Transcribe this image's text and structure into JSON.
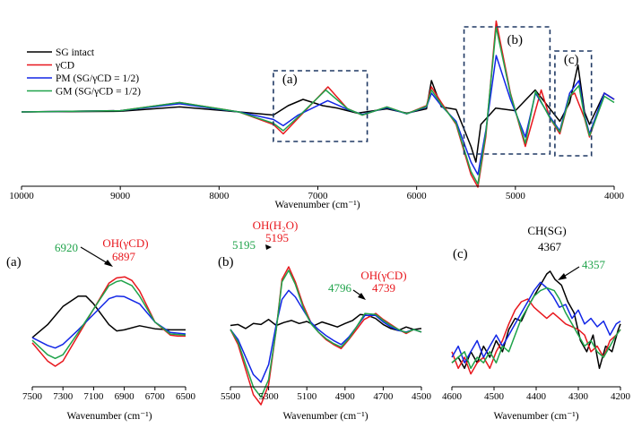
{
  "figure": {
    "colors": {
      "sg_intact": "#000000",
      "gamma_cd": "#e8171d",
      "pm": "#1226e6",
      "gm": "#1fa34a",
      "frame": "#1f3863"
    }
  },
  "chart_data": [
    {
      "id": "main",
      "type": "line",
      "xlabel": "Wavenumber (cm⁻¹)",
      "ylabel": "",
      "xlim": [
        10000,
        4000
      ],
      "x_reversed": true,
      "y_ticks_shown": false,
      "xticks": [
        10000,
        9000,
        8000,
        7000,
        6000,
        5000,
        4000
      ],
      "xtick_labels": [
        "10000",
        "9000",
        "8000",
        "7000",
        "6000",
        "5000",
        "4000"
      ],
      "legend": {
        "placement": "top-left",
        "entries": [
          "SG intact",
          "γCD",
          "PM (SG/γCD = 1/2)",
          "GM (SG/γCD = 1/2)"
        ]
      },
      "region_boxes": [
        {
          "label": "(a)",
          "x_range": [
            7450,
            6500
          ]
        },
        {
          "label": "(b)",
          "x_range": [
            5520,
            4650
          ]
        },
        {
          "label": "(c)",
          "x_range": [
            4600,
            4230
          ]
        }
      ],
      "series": [
        {
          "name": "SG intact",
          "x": [
            10000,
            9000,
            8400,
            7800,
            7450,
            7300,
            7150,
            6950,
            6800,
            6600,
            6300,
            6100,
            5900,
            5850,
            5750,
            5600,
            5450,
            5400,
            5350,
            5200,
            5000,
            4800,
            4700,
            4550,
            4450,
            4367,
            4300,
            4250,
            4100,
            4000
          ],
          "y": [
            0.0,
            0.01,
            0.08,
            0.0,
            -0.05,
            0.1,
            0.2,
            0.1,
            0.06,
            -0.02,
            0.05,
            -0.02,
            0.05,
            0.5,
            0.08,
            0.04,
            -0.55,
            -0.8,
            -0.2,
            0.06,
            0.02,
            0.35,
            0.15,
            -0.15,
            0.15,
            0.75,
            0.0,
            -0.2,
            0.3,
            0.2
          ]
        },
        {
          "name": "γCD",
          "x": [
            10000,
            9000,
            8400,
            7800,
            7450,
            7350,
            7200,
            6897,
            6700,
            6550,
            6300,
            6100,
            5900,
            5850,
            5750,
            5600,
            5450,
            5380,
            5300,
            5195,
            5050,
            4900,
            4739,
            4650,
            4550,
            4450,
            4400,
            4300,
            4250,
            4100,
            4000
          ],
          "y": [
            0.0,
            0.02,
            0.15,
            0.0,
            -0.2,
            -0.35,
            -0.1,
            0.4,
            0.05,
            -0.05,
            0.08,
            -0.03,
            0.1,
            0.4,
            0.15,
            -0.2,
            -1.0,
            -1.2,
            -0.4,
            1.45,
            0.3,
            -0.55,
            0.35,
            -0.1,
            -0.35,
            0.25,
            0.3,
            -0.1,
            -0.4,
            0.3,
            0.2
          ]
        },
        {
          "name": "PM (SG/γCD = 1/2)",
          "x": [
            10000,
            9000,
            8400,
            7800,
            7450,
            7350,
            7200,
            6900,
            6700,
            6550,
            6300,
            6100,
            5900,
            5850,
            5750,
            5600,
            5450,
            5380,
            5300,
            5195,
            5050,
            4900,
            4796,
            4650,
            4550,
            4450,
            4357,
            4300,
            4250,
            4100,
            4000
          ],
          "y": [
            0.0,
            0.02,
            0.13,
            0.0,
            -0.12,
            -0.22,
            -0.05,
            0.18,
            0.04,
            -0.04,
            0.07,
            -0.03,
            0.08,
            0.3,
            0.1,
            -0.15,
            -0.8,
            -1.0,
            -0.3,
            0.9,
            0.2,
            -0.4,
            0.3,
            -0.08,
            -0.3,
            0.3,
            0.5,
            -0.05,
            -0.35,
            0.3,
            0.2
          ]
        },
        {
          "name": "GM (SG/γCD = 1/2)",
          "x": [
            10000,
            9000,
            8400,
            7800,
            7450,
            7350,
            7200,
            6920,
            6700,
            6550,
            6300,
            6100,
            5900,
            5850,
            5750,
            5600,
            5450,
            5380,
            5300,
            5195,
            5050,
            4900,
            4796,
            4650,
            4550,
            4450,
            4357,
            4300,
            4250,
            4100,
            4000
          ],
          "y": [
            0.0,
            0.02,
            0.15,
            0.0,
            -0.18,
            -0.3,
            -0.08,
            0.35,
            0.05,
            -0.05,
            0.08,
            -0.03,
            0.09,
            0.35,
            0.12,
            -0.18,
            -0.95,
            -1.15,
            -0.35,
            1.35,
            0.28,
            -0.5,
            0.33,
            -0.1,
            -0.32,
            0.25,
            0.42,
            -0.08,
            -0.38,
            0.25,
            0.15
          ]
        }
      ]
    },
    {
      "id": "a",
      "type": "line",
      "panel_label": "(a)",
      "xlabel": "Wavenumber (cm⁻¹)",
      "xlim": [
        7500,
        6500
      ],
      "x_reversed": true,
      "xticks": [
        7500,
        7300,
        7100,
        6900,
        6700,
        6500
      ],
      "xtick_labels": [
        "7500",
        "7300",
        "7100",
        "6900",
        "6700",
        "6500"
      ],
      "annotations": [
        {
          "text": "OH(γCD)",
          "series": "γCD"
        },
        {
          "text": "6897",
          "series": "γCD",
          "x": 6897
        },
        {
          "text": "6920",
          "series": "GM (SG/γCD = 1/2)",
          "x": 6920
        }
      ],
      "series": [
        {
          "name": "SG intact",
          "x": [
            7500,
            7400,
            7300,
            7200,
            7150,
            7100,
            7000,
            6950,
            6900,
            6800,
            6700,
            6600,
            6500
          ],
          "y": [
            0.05,
            0.3,
            0.65,
            0.85,
            0.85,
            0.7,
            0.3,
            0.18,
            0.2,
            0.28,
            0.22,
            0.2,
            0.2
          ]
        },
        {
          "name": "γCD",
          "x": [
            7500,
            7400,
            7350,
            7300,
            7200,
            7100,
            7000,
            6950,
            6897,
            6850,
            6800,
            6700,
            6600,
            6550,
            6500
          ],
          "y": [
            -0.05,
            -0.4,
            -0.5,
            -0.4,
            0.1,
            0.6,
            1.1,
            1.2,
            1.22,
            1.15,
            0.95,
            0.35,
            0.1,
            0.08,
            0.08
          ]
        },
        {
          "name": "PM (SG/γCD = 1/2)",
          "x": [
            7500,
            7400,
            7350,
            7300,
            7200,
            7100,
            7000,
            6950,
            6900,
            6800,
            6700,
            6600,
            6500
          ],
          "y": [
            0.05,
            -0.1,
            -0.15,
            -0.08,
            0.2,
            0.5,
            0.8,
            0.85,
            0.84,
            0.7,
            0.35,
            0.15,
            0.12
          ]
        },
        {
          "name": "GM (SG/γCD = 1/2)",
          "x": [
            7500,
            7400,
            7350,
            7300,
            7200,
            7100,
            7000,
            6950,
            6920,
            6850,
            6800,
            6700,
            6600,
            6500
          ],
          "y": [
            0.0,
            -0.28,
            -0.35,
            -0.28,
            0.15,
            0.6,
            1.05,
            1.13,
            1.15,
            1.05,
            0.85,
            0.35,
            0.12,
            0.1
          ]
        }
      ]
    },
    {
      "id": "b",
      "type": "line",
      "panel_label": "(b)",
      "xlabel": "Wavenumber (cm⁻¹)",
      "xlim": [
        5500,
        4500
      ],
      "x_reversed": true,
      "xticks": [
        5500,
        5300,
        5100,
        4900,
        4700,
        4500
      ],
      "xtick_labels": [
        "5500",
        "5300",
        "5100",
        "4900",
        "4700",
        "4500"
      ],
      "annotations": [
        {
          "text": "OH(H₂O)",
          "series": "γCD"
        },
        {
          "text": "5195",
          "series": "γCD",
          "x": 5195
        },
        {
          "text": "5195",
          "series": "GM (SG/γCD = 1/2)",
          "x": 5195
        },
        {
          "text": "OH(γCD)",
          "series": "γCD"
        },
        {
          "text": "4739",
          "series": "γCD",
          "x": 4739
        },
        {
          "text": "4796",
          "series": "GM (SG/γCD = 1/2)",
          "x": 4796
        }
      ],
      "series": [
        {
          "name": "SG intact",
          "x": [
            5500,
            5460,
            5420,
            5380,
            5340,
            5300,
            5260,
            5220,
            5180,
            5140,
            5100,
            5060,
            5020,
            4980,
            4940,
            4900,
            4860,
            4820,
            4780,
            4740,
            4700,
            4660,
            4620,
            4580,
            4540,
            4500
          ],
          "y": [
            0.08,
            0.1,
            0.02,
            0.12,
            0.1,
            0.2,
            0.08,
            0.14,
            0.18,
            0.12,
            0.16,
            0.08,
            0.15,
            0.1,
            0.05,
            0.12,
            0.18,
            0.3,
            0.28,
            0.22,
            0.1,
            0.02,
            -0.02,
            0.05,
            0.0,
            0.02
          ]
        },
        {
          "name": "γCD",
          "x": [
            5500,
            5460,
            5420,
            5380,
            5340,
            5300,
            5260,
            5230,
            5195,
            5160,
            5120,
            5080,
            5040,
            5000,
            4960,
            4920,
            4880,
            4840,
            4800,
            4739,
            4700,
            4660,
            4620,
            4580,
            4540,
            4500
          ],
          "y": [
            0.0,
            -0.3,
            -0.8,
            -1.3,
            -1.5,
            -1.1,
            0.0,
            1.0,
            1.25,
            0.95,
            0.5,
            0.15,
            -0.05,
            -0.2,
            -0.3,
            -0.38,
            -0.2,
            0.0,
            0.2,
            0.32,
            0.2,
            0.1,
            0.0,
            -0.08,
            0.0,
            -0.05
          ]
        },
        {
          "name": "PM (SG/γCD = 1/2)",
          "x": [
            5500,
            5460,
            5420,
            5380,
            5340,
            5300,
            5260,
            5230,
            5195,
            5160,
            5120,
            5080,
            5040,
            5000,
            4960,
            4920,
            4880,
            4840,
            4796,
            4740,
            4700,
            4660,
            4620,
            4580,
            4540,
            4500
          ],
          "y": [
            0.0,
            -0.2,
            -0.55,
            -0.9,
            -1.05,
            -0.7,
            0.1,
            0.6,
            0.78,
            0.65,
            0.4,
            0.15,
            0.0,
            -0.12,
            -0.22,
            -0.3,
            -0.15,
            0.05,
            0.28,
            0.28,
            0.15,
            0.05,
            -0.02,
            -0.05,
            0.0,
            -0.05
          ]
        },
        {
          "name": "GM (SG/γCD = 1/2)",
          "x": [
            5500,
            5460,
            5420,
            5380,
            5340,
            5300,
            5260,
            5230,
            5195,
            5160,
            5120,
            5080,
            5040,
            5000,
            4960,
            4920,
            4880,
            4840,
            4796,
            4740,
            4700,
            4660,
            4620,
            4580,
            4540,
            4500
          ],
          "y": [
            0.0,
            -0.25,
            -0.7,
            -1.15,
            -1.35,
            -1.0,
            0.0,
            0.95,
            1.18,
            0.9,
            0.45,
            0.12,
            -0.05,
            -0.18,
            -0.28,
            -0.35,
            -0.18,
            0.05,
            0.32,
            0.3,
            0.18,
            0.08,
            0.0,
            -0.06,
            0.0,
            -0.05
          ]
        }
      ]
    },
    {
      "id": "c",
      "type": "line",
      "panel_label": "(c)",
      "xlabel": "Wavenumber (cm⁻¹)",
      "xlim": [
        4600,
        4200
      ],
      "x_reversed": true,
      "xticks": [
        4600,
        4500,
        4400,
        4300,
        4200
      ],
      "xtick_labels": [
        "4600",
        "4500",
        "4400",
        "4300",
        "4200"
      ],
      "annotations": [
        {
          "text": "CH(SG)",
          "series": "SG intact"
        },
        {
          "text": "4367",
          "series": "SG intact",
          "x": 4367
        },
        {
          "text": "4357",
          "series": "GM (SG/γCD = 1/2)",
          "x": 4357
        }
      ],
      "series": [
        {
          "name": "SG intact",
          "x": [
            4600,
            4585,
            4570,
            4555,
            4540,
            4525,
            4510,
            4495,
            4480,
            4465,
            4450,
            4435,
            4420,
            4405,
            4390,
            4375,
            4367,
            4355,
            4340,
            4325,
            4310,
            4295,
            4280,
            4265,
            4250,
            4235,
            4220,
            4205,
            4200
          ],
          "y": [
            -0.6,
            -0.5,
            -0.7,
            -0.4,
            -0.6,
            -0.3,
            -0.5,
            -0.2,
            -0.4,
            0.0,
            0.2,
            0.15,
            0.4,
            0.6,
            0.8,
            1.0,
            1.05,
            0.9,
            0.8,
            0.5,
            0.3,
            -0.2,
            -0.4,
            -0.1,
            -0.7,
            -0.3,
            -0.4,
            0.0,
            0.1
          ]
        },
        {
          "name": "γCD",
          "x": [
            4600,
            4585,
            4570,
            4555,
            4540,
            4525,
            4510,
            4495,
            4480,
            4465,
            4450,
            4435,
            4420,
            4405,
            4390,
            4375,
            4360,
            4345,
            4330,
            4315,
            4300,
            4285,
            4270,
            4255,
            4240,
            4225,
            4210,
            4200
          ],
          "y": [
            -0.4,
            -0.7,
            -0.5,
            -0.8,
            -0.6,
            -0.5,
            -0.7,
            -0.4,
            -0.2,
            0.1,
            0.35,
            0.5,
            0.55,
            0.4,
            0.3,
            0.2,
            0.3,
            0.2,
            0.1,
            0.05,
            0.0,
            -0.1,
            -0.4,
            -0.3,
            -0.5,
            -0.2,
            -0.1,
            0.0
          ]
        },
        {
          "name": "PM (SG/γCD = 1/2)",
          "x": [
            4600,
            4585,
            4570,
            4555,
            4540,
            4525,
            4510,
            4495,
            4480,
            4465,
            4450,
            4435,
            4420,
            4405,
            4390,
            4375,
            4360,
            4345,
            4330,
            4315,
            4300,
            4285,
            4270,
            4255,
            4240,
            4225,
            4210,
            4200
          ],
          "y": [
            -0.5,
            -0.3,
            -0.6,
            -0.4,
            -0.2,
            -0.5,
            -0.3,
            -0.1,
            -0.3,
            -0.1,
            0.1,
            0.3,
            0.5,
            0.7,
            0.85,
            0.75,
            0.6,
            0.4,
            0.45,
            0.2,
            0.35,
            0.1,
            0.2,
            0.05,
            0.15,
            -0.1,
            0.1,
            0.15
          ]
        },
        {
          "name": "GM (SG/γCD = 1/2)",
          "x": [
            4600,
            4585,
            4570,
            4555,
            4540,
            4525,
            4510,
            4495,
            4480,
            4465,
            4450,
            4435,
            4420,
            4405,
            4390,
            4375,
            4357,
            4345,
            4330,
            4315,
            4300,
            4285,
            4270,
            4255,
            4240,
            4225,
            4210,
            4200
          ],
          "y": [
            -0.6,
            -0.5,
            -0.4,
            -0.7,
            -0.5,
            -0.6,
            -0.4,
            -0.6,
            -0.3,
            -0.4,
            -0.1,
            0.2,
            0.4,
            0.6,
            0.7,
            0.75,
            0.7,
            0.55,
            0.3,
            0.1,
            -0.1,
            -0.3,
            -0.2,
            -0.4,
            -0.5,
            -0.3,
            -0.1,
            0.0
          ]
        }
      ]
    }
  ]
}
